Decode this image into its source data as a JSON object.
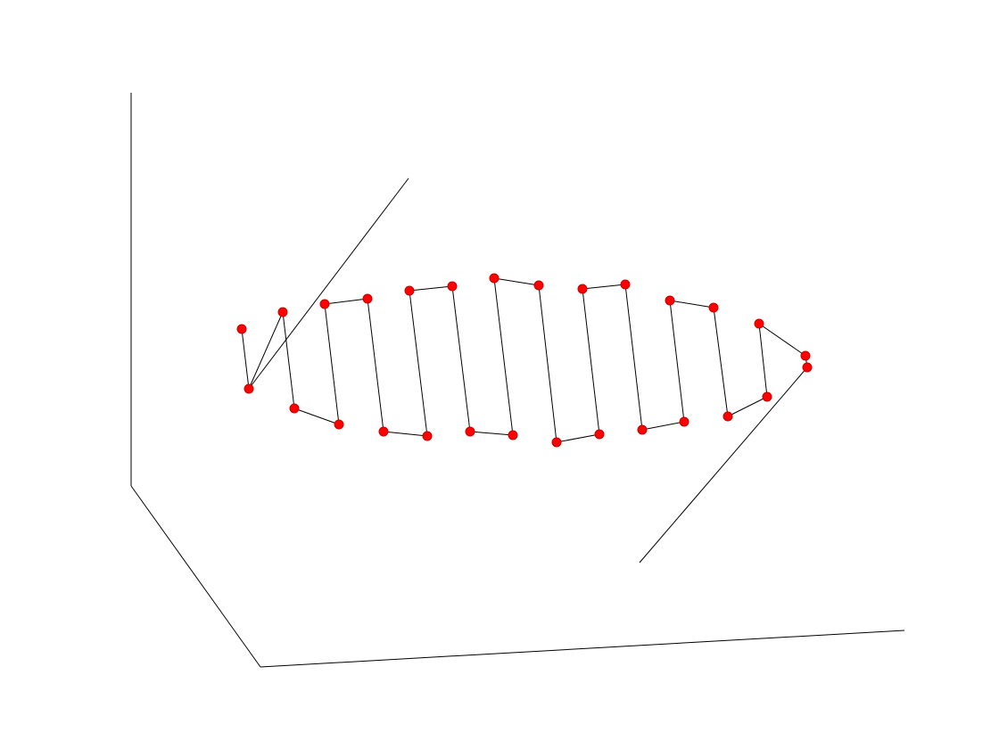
{
  "chart_data": {
    "type": "line",
    "projection": "3d",
    "grid": false,
    "legend": "none",
    "title": "",
    "xlabel": "",
    "ylabel": "",
    "zlabel": "",
    "series": [
      {
        "marker": "circle",
        "marker_color": "#ff0000",
        "line_color": "#000000",
        "points": [
          [
            271,
            369
          ],
          [
            279,
            436
          ],
          [
            317,
            350
          ],
          [
            330,
            458
          ],
          [
            380,
            476
          ],
          [
            364,
            341
          ],
          [
            412,
            335
          ],
          [
            430,
            484
          ],
          [
            479,
            489
          ],
          [
            459,
            326
          ],
          [
            507,
            321
          ],
          [
            527,
            484
          ],
          [
            575,
            488
          ],
          [
            554,
            312
          ],
          [
            604,
            320
          ],
          [
            624,
            496
          ],
          [
            672,
            487
          ],
          [
            653,
            324
          ],
          [
            701,
            319
          ],
          [
            720,
            482
          ],
          [
            767,
            473
          ],
          [
            751,
            337
          ],
          [
            800,
            345
          ],
          [
            816,
            467
          ],
          [
            860,
            445
          ],
          [
            851,
            363
          ],
          [
            903,
            399
          ],
          [
            905,
            412
          ]
        ]
      }
    ]
  },
  "style": {
    "marker_fill": "#ff0000",
    "marker_edge": "#cc0000",
    "axis_color": "#000000"
  }
}
